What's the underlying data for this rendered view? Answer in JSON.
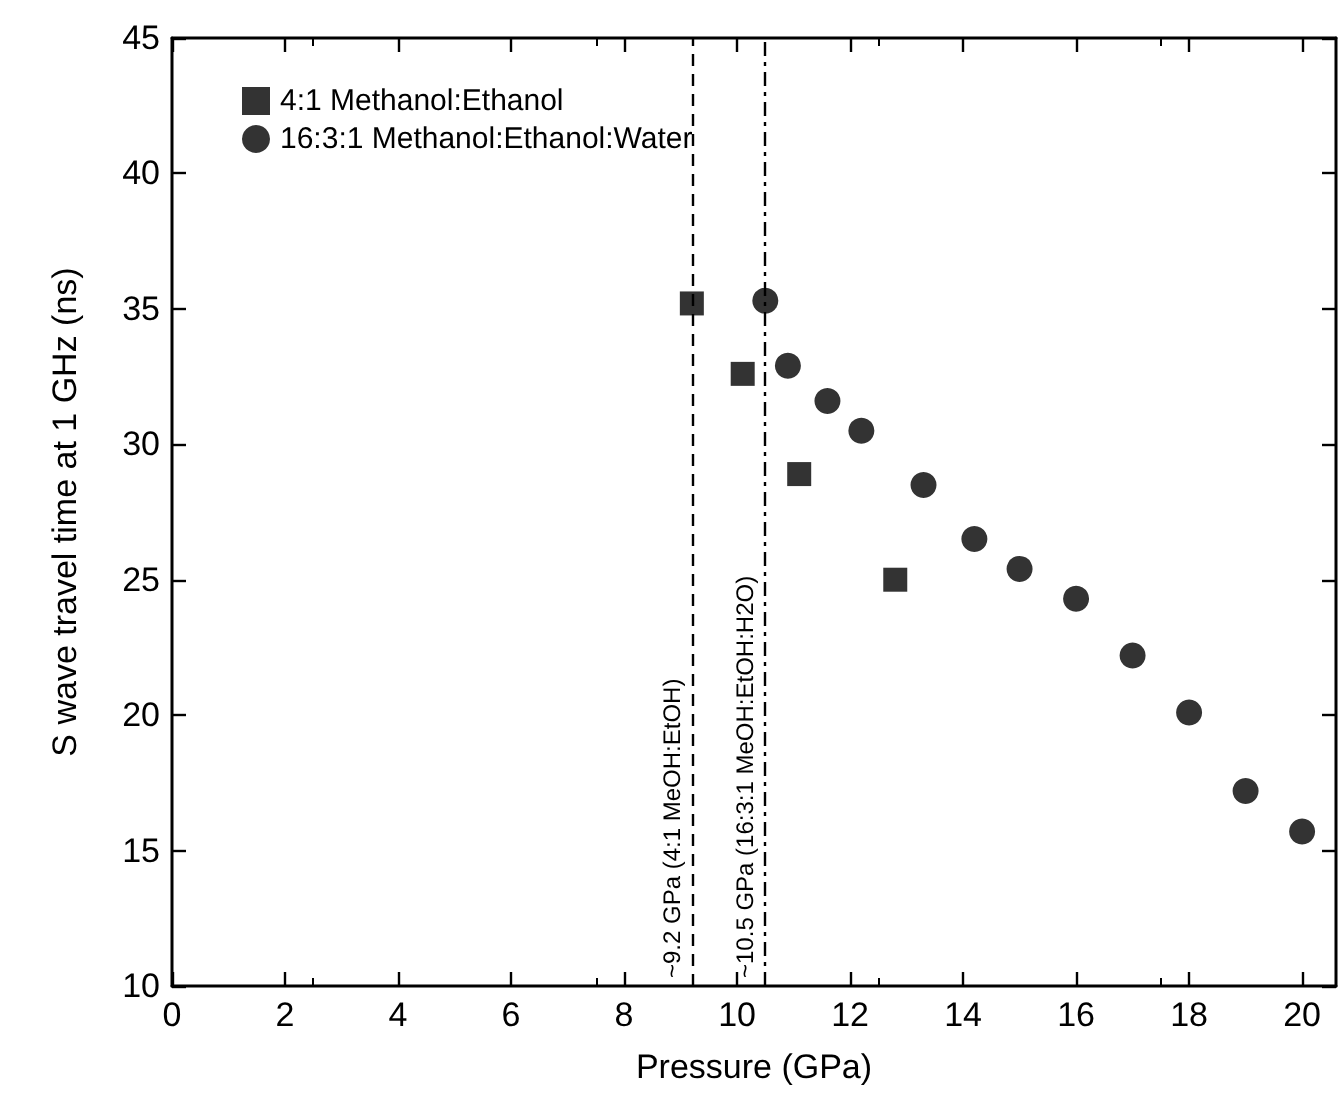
{
  "chart_data": {
    "type": "scatter",
    "xlabel": "Pressure (GPa)",
    "ylabel": "S wave travel time at 1 GHz (ns)",
    "xlim": [
      0,
      20.6
    ],
    "xticks": [
      0,
      2,
      4,
      6,
      8,
      10,
      12,
      14,
      16,
      18,
      20
    ],
    "ylim": [
      10,
      45
    ],
    "yticks": [
      10,
      15,
      20,
      25,
      30,
      35,
      40,
      45
    ],
    "grid": false,
    "legend": "top left",
    "series": [
      {
        "name": "4:1 Methanol:Ethanol",
        "color": "#000000",
        "marker": "square",
        "x": [
          9.2,
          10.1,
          11.1,
          12.8
        ],
        "values": [
          35.2,
          32.6,
          28.9,
          25.0
        ]
      },
      {
        "name": "16:3:1 Methanol:Ethanol:Water",
        "color": "#000000",
        "marker": "circle",
        "x": [
          10.5,
          10.9,
          11.6,
          12.2,
          13.3,
          14.2,
          15.0,
          16.0,
          17.0,
          18.0,
          19.0,
          20.0
        ],
        "values": [
          35.3,
          32.9,
          31.6,
          30.5,
          28.5,
          26.5,
          25.4,
          24.3,
          22.2,
          20.1,
          17.2,
          15.7
        ]
      }
    ],
    "ref_lines": [
      {
        "axis": "x",
        "value": 9.2,
        "label": "~9.2 GPa (4:1 MeOH:EtOH)",
        "color": "#000000",
        "line_style": "dashed"
      },
      {
        "axis": "x",
        "value": 10.5,
        "label": "~10.5 GPa (16:3:1 MeOH:EtOH:H2O)",
        "color": "#000000",
        "line_style": "dashdot"
      }
    ]
  }
}
